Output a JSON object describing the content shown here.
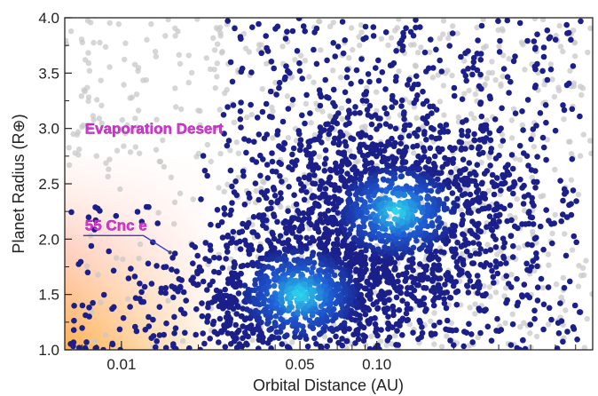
{
  "chart_data": {
    "type": "scatter",
    "title": "",
    "xlabel": "Orbital Distance (AU)",
    "ylabel": "Planet Radius (R⊕)",
    "x_scale": "log",
    "xlim": [
      0.006,
      0.7
    ],
    "ylim": [
      1.0,
      4.0
    ],
    "x_ticks": [
      {
        "value": 0.01,
        "label": "0.01"
      },
      {
        "value": 0.05,
        "label": "0.05"
      },
      {
        "value": 0.1,
        "label": "0.10"
      }
    ],
    "y_ticks": [
      {
        "value": 1.0,
        "label": "1.0"
      },
      {
        "value": 1.5,
        "label": "1.5"
      },
      {
        "value": 2.0,
        "label": "2.0"
      },
      {
        "value": 2.5,
        "label": "2.5"
      },
      {
        "value": 3.0,
        "label": "3.0"
      },
      {
        "value": 3.5,
        "label": "3.5"
      },
      {
        "value": 4.0,
        "label": "4.0"
      }
    ],
    "grid": false,
    "colors": {
      "planet_points": "#1a1f8a",
      "density_peak": "#2ee0f0",
      "background_points": "#c8c8c8",
      "desert_gradient": "#ffb050",
      "annotation": "#e030e0"
    },
    "density_peaks": [
      {
        "x": 0.05,
        "y": 1.5
      },
      {
        "x": 0.12,
        "y": 2.25
      }
    ],
    "annotations": [
      {
        "text": "Evaporation Desert",
        "x": 0.0072,
        "y": 3.0
      },
      {
        "text": "55 Cnc e",
        "x": 0.0072,
        "y": 2.08,
        "point": {
          "x": 0.0155,
          "y": 1.88
        }
      }
    ]
  }
}
